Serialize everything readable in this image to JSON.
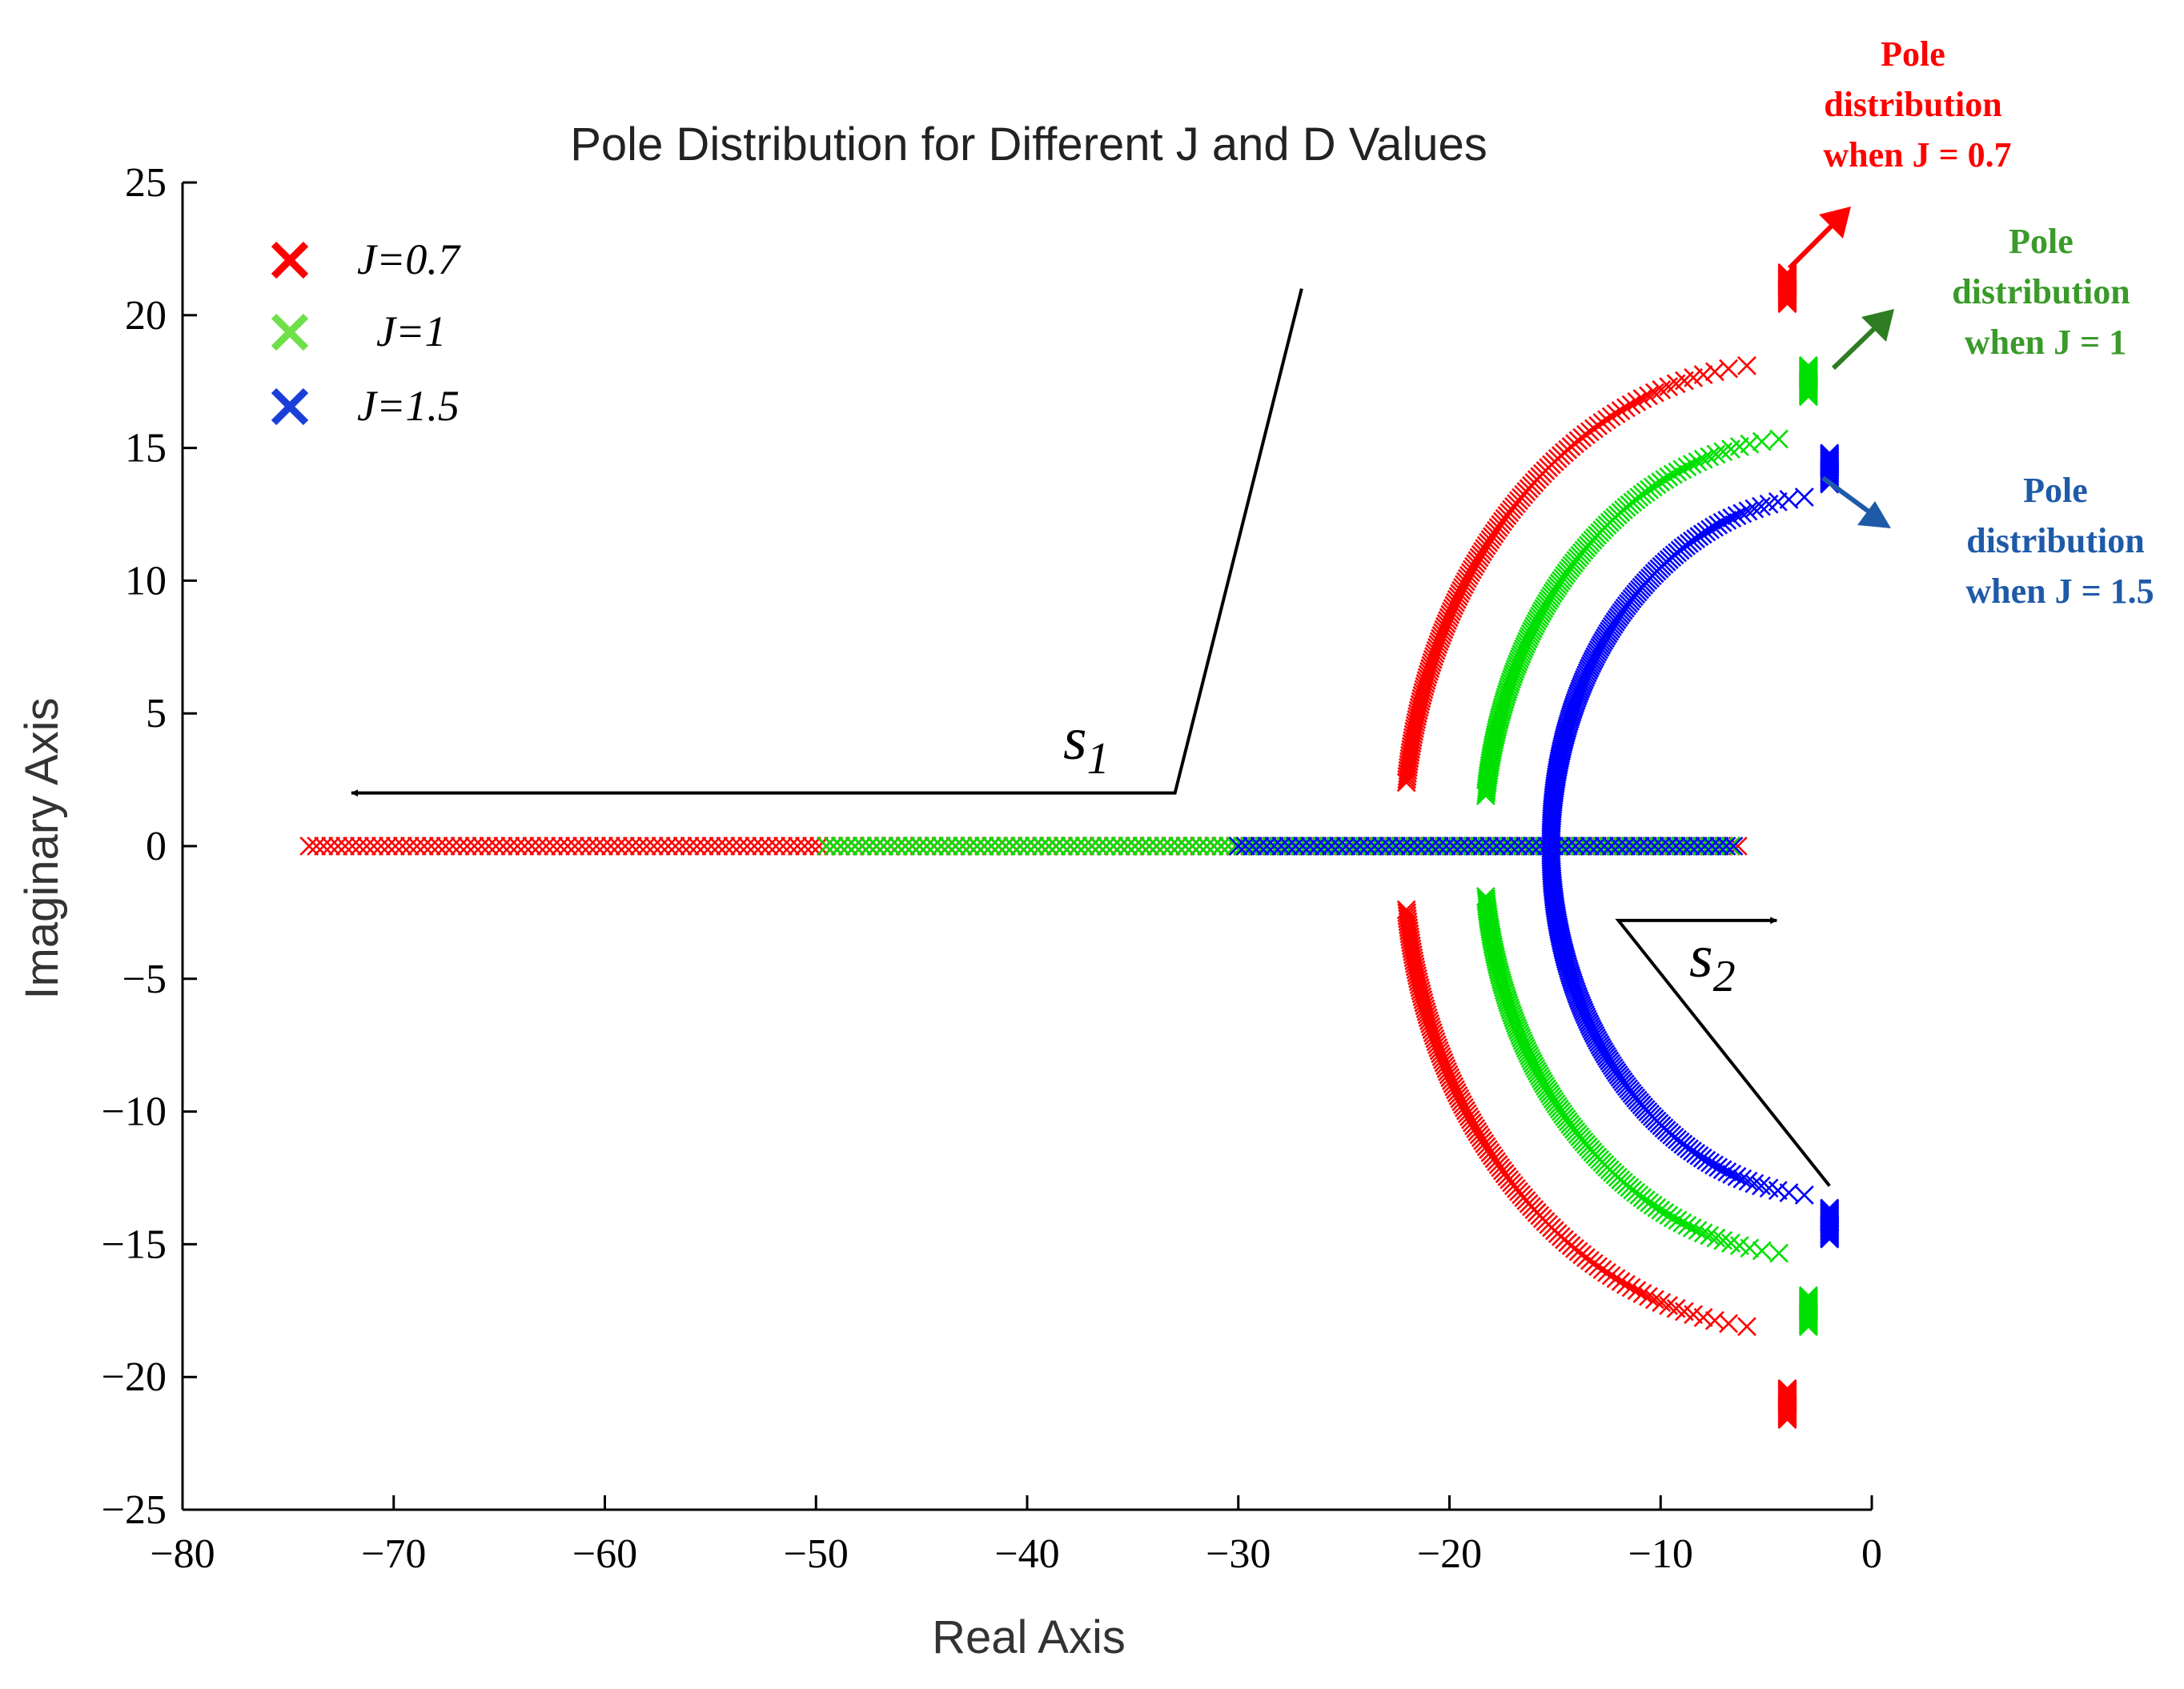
{
  "chart_data": {
    "type": "scatter",
    "title": "Pole Distribution for Different J and D Values",
    "xlabel": "Real Axis",
    "ylabel": "Imaginary Axis",
    "xlim": [
      -80,
      0
    ],
    "ylim": [
      -25,
      25
    ],
    "xticks": [
      -80,
      -70,
      -60,
      -50,
      -40,
      -30,
      -20,
      -10,
      0
    ],
    "yticks": [
      -25,
      -20,
      -15,
      -10,
      -5,
      0,
      5,
      10,
      15,
      20,
      25
    ],
    "xtick_labels": [
      "−80",
      "−70",
      "−60",
      "−50",
      "−40",
      "−30",
      "−20",
      "−10",
      "0"
    ],
    "ytick_labels": [
      "−25",
      "−20",
      "−15",
      "−10",
      "−5",
      "0",
      "5",
      "10",
      "15",
      "20",
      "25"
    ],
    "marker": "x",
    "series": [
      {
        "name": "J=0.7",
        "color": "#ff0000",
        "real_axis_range": [
          -74,
          -6.2
        ],
        "arc": {
          "center": [
            -4,
            0
          ],
          "radius": 18.2,
          "imag_range": [
            2.4,
            21.6
          ],
          "endpoint": [
            -4.5,
            21.5
          ]
        }
      },
      {
        "name": "J=1",
        "color": "#00e000",
        "real_axis_range": [
          -49.5,
          -6.5
        ],
        "arc": {
          "center": [
            -3,
            0
          ],
          "radius": 15.4,
          "imag_range": [
            1.9,
            18.1
          ],
          "endpoint": [
            -3,
            18
          ]
        }
      },
      {
        "name": "J=1.5",
        "color": "#0000ff",
        "real_axis_range": [
          -30,
          -6.5
        ],
        "arc": {
          "center": [
            -2,
            0
          ],
          "radius": 13.2,
          "imag_range": [
            0,
            14.8
          ],
          "endpoint": [
            -2,
            14.8
          ]
        }
      }
    ],
    "annotations": {
      "s1": {
        "label": "s",
        "subscript": "1",
        "path": [
          [
            -27,
            21
          ],
          [
            -33,
            2
          ],
          [
            -72,
            2
          ]
        ]
      },
      "s2": {
        "label": "s",
        "subscript": "2",
        "path": [
          [
            -2,
            -12.8
          ],
          [
            -12,
            -2.8
          ],
          [
            -4.5,
            -2.8
          ]
        ]
      }
    }
  },
  "legend": {
    "items": [
      {
        "label": "J=0.7",
        "color": "#ff0000"
      },
      {
        "label": "J=1",
        "color": "#6ee04a"
      },
      {
        "label": "J=1.5",
        "color": "#1a3fd8"
      }
    ]
  },
  "callouts": [
    {
      "lines": [
        "Pole",
        "distribution",
        "when J = 0.7"
      ],
      "color": "#ff0000"
    },
    {
      "lines": [
        "Pole",
        "distribution",
        "when J = 1"
      ],
      "color": "#3a9a2a"
    },
    {
      "lines": [
        "Pole",
        "distribution",
        "when J = 1.5"
      ],
      "color": "#1f5aa8"
    }
  ]
}
